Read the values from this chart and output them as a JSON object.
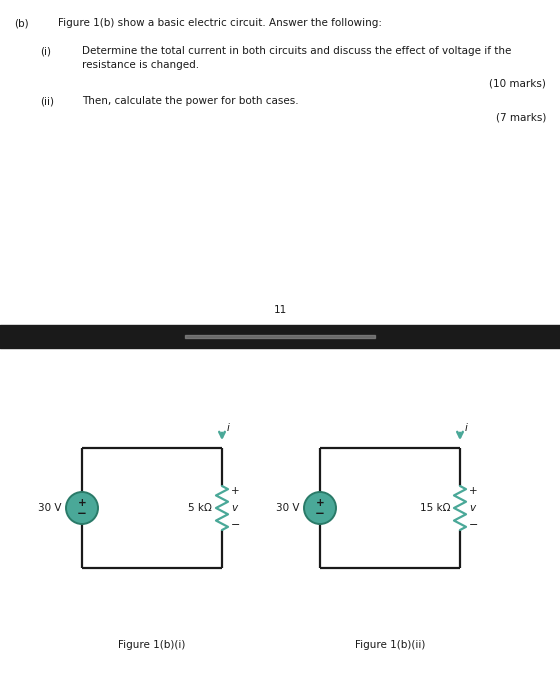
{
  "bg_color": "#ffffff",
  "text_color": "#1a1a1a",
  "teal_color": "#4aa898",
  "part_b_label": "(b)",
  "part_b_text": "Figure 1(b) show a basic electric circuit. Answer the following:",
  "item_i_label": "(i)",
  "item_i_text1": "Determine the total current in both circuits and discuss the effect of voltage if the",
  "item_i_text2": "resistance is changed.",
  "marks_10": "(10 marks)",
  "item_ii_label": "(ii)",
  "item_ii_text": "Then, calculate the power for both cases.",
  "marks_7": "(7 marks)",
  "page_number": "11",
  "fig1_label": "Figure 1(b)(i)",
  "fig2_label": "Figure 1(b)(ii)",
  "circuit1_voltage": "30 V",
  "circuit1_resistance": "5 kΩ",
  "circuit2_voltage": "30 V",
  "circuit2_resistance": "15 kΩ",
  "label_i": "i",
  "label_v": "v",
  "label_plus": "+",
  "label_minus": "−"
}
